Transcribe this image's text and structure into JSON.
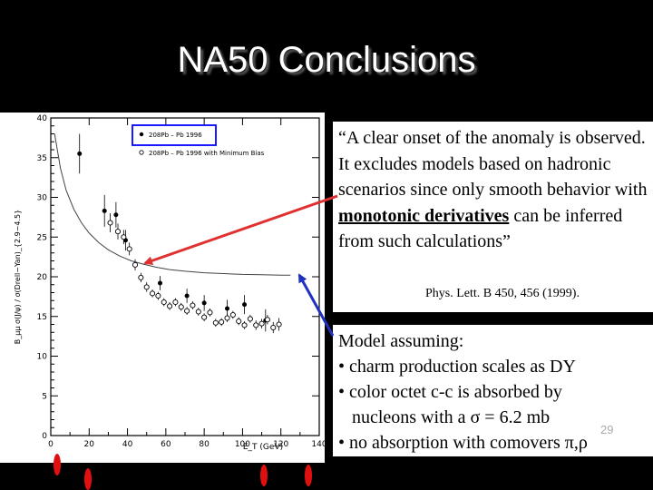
{
  "slide": {
    "title": "NA50 Conclusions",
    "slide_number": "29"
  },
  "quote": {
    "before_emph": "“A clear onset of the anomaly is observed.  It excludes models based on hadronic scenarios since only smooth behavior with ",
    "emph": "monotonic derivatives",
    "after_emph": " can be inferred from such calculations”",
    "citation": "Phys. Lett. B 450, 456 (1999)."
  },
  "model": {
    "lines": [
      "Model assuming:",
      "• charm production scales as DY",
      "• color octet c-c is absorbed by",
      "   nucleons with a σ = 6.2 mb",
      "• no absorption with comovers π,ρ"
    ]
  },
  "colors": {
    "arrow": "#e03030",
    "arrow_blue": "#2030c0",
    "legend_border": "#0000ff",
    "marker": "#e01010"
  },
  "chart_data": {
    "type": "scatter",
    "xlabel": "E_T (GeV)",
    "ylabel": "B_μμ σ(J/ψ) / σ(Drell−Yan)_{2.9−4.5}",
    "xlim": [
      0,
      140
    ],
    "ylim": [
      0,
      40
    ],
    "xticks": [
      "0",
      "20",
      "40",
      "60",
      "80",
      "100",
      "120",
      "140"
    ],
    "yticks": [
      "0",
      "5",
      "10",
      "15",
      "20",
      "25",
      "30",
      "35",
      "40"
    ],
    "legend": {
      "placement": "top-left",
      "entries": [
        "208Pb – Pb 1996",
        "208Pb – Pb 1996 with Minimum Bias"
      ]
    },
    "series": [
      {
        "name": "208Pb – Pb 1996",
        "marker": "filled",
        "x": [
          15,
          28,
          34,
          39,
          57,
          71,
          80,
          92,
          101,
          112
        ],
        "y": [
          35.5,
          28.3,
          27.8,
          24.6,
          19.2,
          17.6,
          16.7,
          16.0,
          16.5,
          14.5
        ],
        "err": [
          2.5,
          2.0,
          1.6,
          1.3,
          0.9,
          0.9,
          1.0,
          1.1,
          1.2,
          1.4
        ]
      },
      {
        "name": "208Pb – Pb 1996 with Minimum Bias",
        "marker": "open",
        "x": [
          31,
          35,
          38,
          41,
          44,
          47,
          50,
          53,
          56,
          59,
          62,
          65,
          68,
          71,
          74,
          77,
          80,
          83,
          86,
          89,
          92,
          95,
          98,
          101,
          104,
          107,
          110,
          113,
          116,
          119
        ],
        "y": [
          26.8,
          25.7,
          25.0,
          23.5,
          21.5,
          19.9,
          18.7,
          17.9,
          17.6,
          16.8,
          16.3,
          16.8,
          16.2,
          15.7,
          16.4,
          15.6,
          14.9,
          15.5,
          14.2,
          14.3,
          14.8,
          15.2,
          14.4,
          13.9,
          14.7,
          13.9,
          14.1,
          14.6,
          13.6,
          14.0
        ],
        "err": [
          1.2,
          1.0,
          0.9,
          0.8,
          0.7,
          0.6,
          0.6,
          0.5,
          0.5,
          0.5,
          0.5,
          0.5,
          0.5,
          0.5,
          0.5,
          0.5,
          0.5,
          0.5,
          0.5,
          0.5,
          0.5,
          0.5,
          0.5,
          0.5,
          0.5,
          0.6,
          0.6,
          0.6,
          0.7,
          0.8
        ]
      }
    ],
    "model_curve": {
      "x": [
        2,
        5,
        8,
        12,
        16,
        20,
        25,
        30,
        36,
        42,
        48,
        55,
        62,
        70,
        80,
        90,
        100,
        110,
        120,
        125
      ],
      "y": [
        38.0,
        33.7,
        30.9,
        28.5,
        26.8,
        25.5,
        24.3,
        23.4,
        22.6,
        22.0,
        21.6,
        21.2,
        20.9,
        20.7,
        20.5,
        20.4,
        20.3,
        20.25,
        20.2,
        20.2
      ]
    }
  }
}
